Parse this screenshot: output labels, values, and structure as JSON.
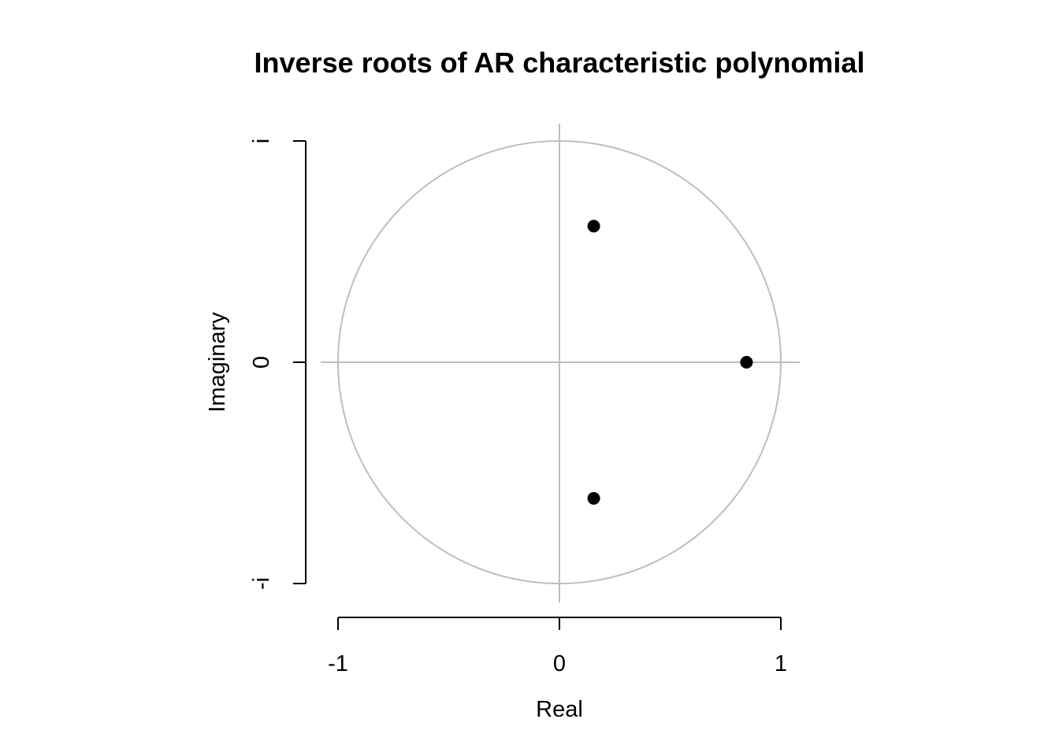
{
  "chart_data": {
    "type": "scatter",
    "title": "Inverse roots of AR characteristic polynomial",
    "xlabel": "Real",
    "ylabel": "Imaginary",
    "xlim": [
      -1,
      1
    ],
    "ylim": [
      -1,
      1
    ],
    "x_ticks": [
      {
        "value": -1,
        "label": "-1"
      },
      {
        "value": 0,
        "label": "0"
      },
      {
        "value": 1,
        "label": "1"
      }
    ],
    "y_ticks": [
      {
        "value": -1,
        "label": "-i"
      },
      {
        "value": 0,
        "label": "0"
      },
      {
        "value": 1,
        "label": "i"
      }
    ],
    "unit_circle": true,
    "reference_lines": {
      "x": 0,
      "y": 0
    },
    "grid": false,
    "points": [
      {
        "x": 0.155,
        "y": 0.615
      },
      {
        "x": 0.845,
        "y": 0.0
      },
      {
        "x": 0.155,
        "y": -0.615
      }
    ],
    "colors": {
      "points": "#000000",
      "reference": "#bebebe",
      "axis": "#000000"
    }
  }
}
